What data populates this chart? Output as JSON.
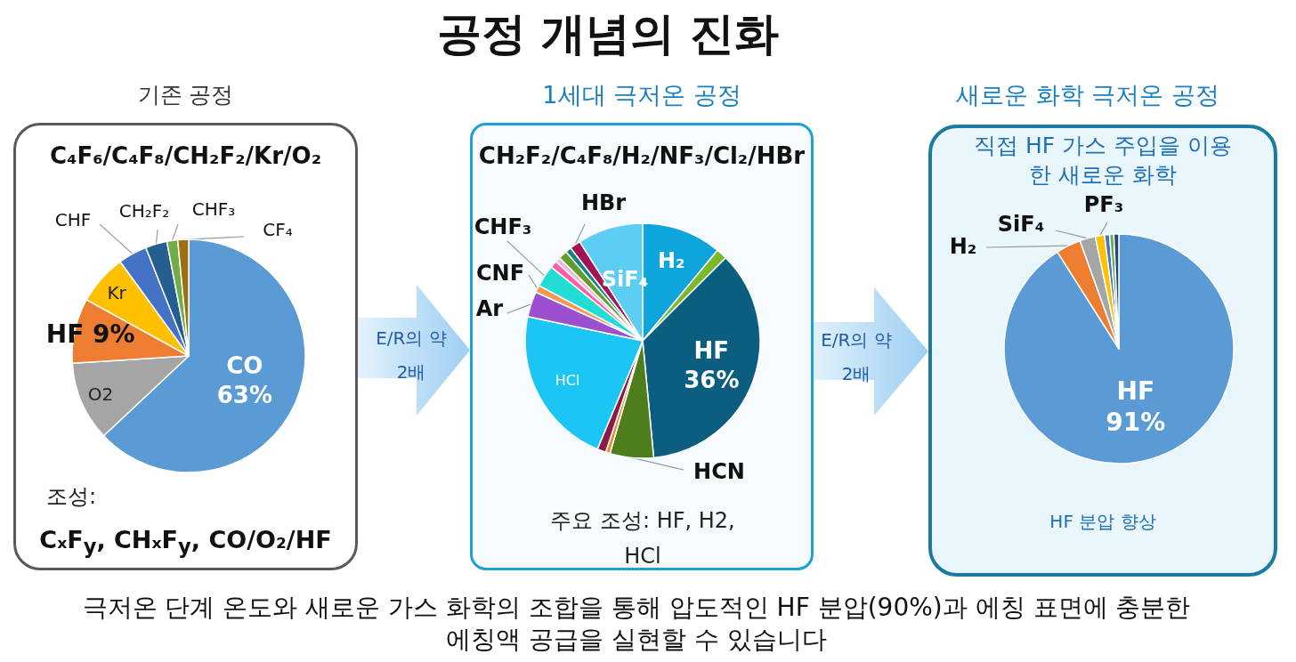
{
  "chart_data": [
    {
      "type": "other",
      "title": "공정 개념의 진화",
      "annotations": [
        "E/R의 약 2배",
        "E/R의 약 2배",
        "극저온 단계 온도와 새로운 가스 화학의 조합을 통해 압도적인 HF 분압(90%)과 에칭 표면에 충분한 에칭액 공급을 실현할 수 있습니다"
      ]
    },
    {
      "type": "pie",
      "title": "기존 공정",
      "subtitle": "C₄F₆/C₄F₈/CH₂F₂/Kr/O₂",
      "categories": [
        "CO",
        "O2",
        "HF",
        "Kr",
        "CHF",
        "CH₂F₂",
        "CHF₃",
        "CF₄"
      ],
      "values": [
        63,
        11,
        9,
        7,
        4,
        3,
        1.5,
        1.5
      ],
      "colors": [
        "#5b9bd5",
        "#a5a5a5",
        "#ed7d31",
        "#ffc000",
        "#4472c4",
        "#255e91",
        "#70ad47",
        "#9c6f10"
      ],
      "value_labels": [
        "63%",
        null,
        "9%",
        null,
        null,
        null,
        null,
        null
      ],
      "annotations": [
        "조성:",
        "CₓF$_{y}$, CHₓF$_{y}$, CO/O₂/HF"
      ]
    },
    {
      "type": "pie",
      "title": "1세대 극저온 공정",
      "subtitle": "CH₂F₂/C₄F₈/H₂/NF₃/Cl₂/HBr",
      "categories": [
        "H₂",
        null,
        "HF",
        "HCN",
        null,
        null,
        "HCl",
        "Ar",
        "CNF",
        "CHF₃",
        null,
        null,
        null,
        null,
        "HBr",
        "SiF₄"
      ],
      "values": [
        11,
        1.5,
        36,
        6,
        0.6,
        1.2,
        22,
        3.5,
        1,
        3,
        1,
        0.7,
        1.2,
        0.8,
        1.5,
        9
      ],
      "colors": [
        "#0ea5dd",
        "#7ab929",
        "#0b5e80",
        "#4e7d1c",
        "#f08a30",
        "#8a1a48",
        "#1cc6f4",
        "#9c4fcf",
        "#f29a50",
        "#22dcd6",
        "#ff5fa8",
        "#f7b7d2",
        "#5f9e2b",
        "#13837f",
        "#a0145c",
        "#5ccdf3"
      ],
      "value_labels": [
        null,
        null,
        "36%",
        null,
        null,
        null,
        null,
        null,
        null,
        null,
        null,
        null,
        null,
        null,
        null,
        null
      ],
      "annotations": [
        "주요 조성: HF, H2, HCl"
      ]
    },
    {
      "type": "pie",
      "title": "새로운 화학 극저온 공정",
      "subtitle": "직접 HF 가스 주입을 이용한 새로운 화학",
      "categories": [
        "HF",
        "H₂",
        "SiF₄",
        "PF₃",
        null,
        null,
        null
      ],
      "values": [
        91,
        3.5,
        2.2,
        1.3,
        0.7,
        0.6,
        0.7
      ],
      "colors": [
        "#5b9bd5",
        "#ed7d31",
        "#a5a5a5",
        "#ffc000",
        "#4472c4",
        "#70ad47",
        "#264478"
      ],
      "value_labels": [
        "91%",
        null,
        null,
        null,
        null,
        null,
        null
      ],
      "annotations": [
        "HF 분압 향상"
      ]
    }
  ]
}
